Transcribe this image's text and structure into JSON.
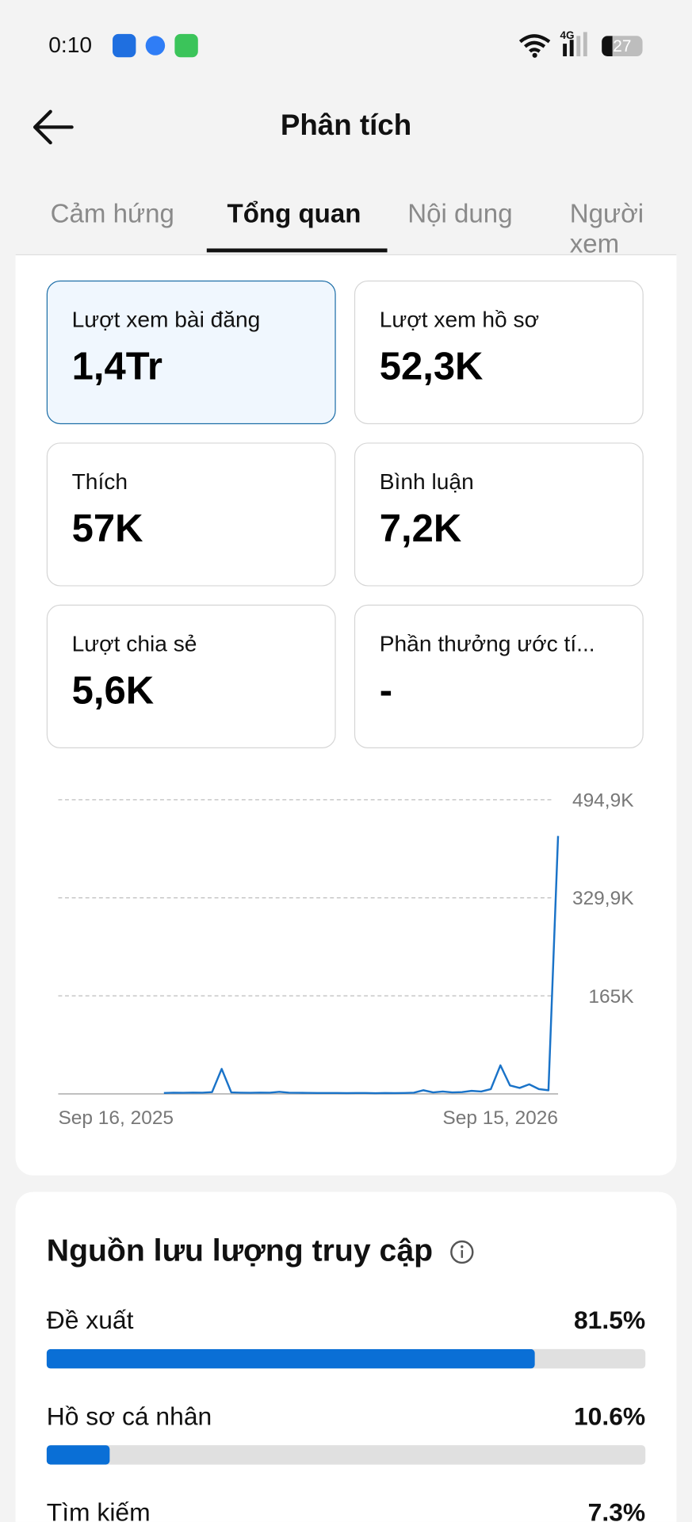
{
  "status_bar": {
    "time": "0:10",
    "network": "4G",
    "battery": "27"
  },
  "header": {
    "title": "Phân tích"
  },
  "tabs": [
    "Cảm hứng",
    "Tổng quan",
    "Nội dung",
    "Người xem"
  ],
  "cards": [
    {
      "label": "Lượt xem bài đăng",
      "value": "1,4Tr"
    },
    {
      "label": "Lượt xem hồ sơ",
      "value": "52,3K"
    },
    {
      "label": "Thích",
      "value": "57K"
    },
    {
      "label": "Bình luận",
      "value": "7,2K"
    },
    {
      "label": "Lượt chia sẻ",
      "value": "5,6K"
    },
    {
      "label": "Phần thưởng ước tí...",
      "value": "-"
    }
  ],
  "chart_data": {
    "type": "line",
    "color": "#1a73c8",
    "grid": true,
    "categories": [
      "Sep 16, 2025",
      null,
      null,
      null,
      null,
      null,
      null,
      null,
      null,
      null,
      null,
      null,
      null,
      null,
      null,
      null,
      null,
      null,
      null,
      null,
      null,
      null,
      null,
      null,
      null,
      null,
      null,
      null,
      null,
      null,
      null,
      null,
      null,
      null,
      null,
      null,
      null,
      null,
      null,
      null,
      null,
      null,
      null,
      null,
      null,
      null,
      null,
      null,
      null,
      null,
      null,
      null,
      "Sep 15, 2026"
    ],
    "values": [
      null,
      null,
      null,
      null,
      null,
      null,
      null,
      null,
      null,
      null,
      null,
      1500,
      2000,
      1800,
      2200,
      2000,
      3000,
      42000,
      2500,
      2000,
      1800,
      2200,
      2000,
      3500,
      2000,
      1800,
      1600,
      1500,
      1400,
      1500,
      1300,
      1400,
      1500,
      1200,
      1400,
      1300,
      1500,
      2000,
      6000,
      2500,
      4000,
      2500,
      3000,
      5000,
      4000,
      8000,
      48000,
      14000,
      10000,
      16000,
      8000,
      6000,
      434000
    ],
    "ylim": [
      0,
      494900
    ],
    "yticks": [
      {
        "value": 165000,
        "label": "165K"
      },
      {
        "value": 329900,
        "label": "329,9K"
      },
      {
        "value": 494900,
        "label": "494,9K"
      }
    ]
  },
  "traffic": {
    "title": "Nguồn lưu lượng truy cập",
    "xlim": [
      0,
      100
    ],
    "color": "#0a6fd6",
    "items": [
      {
        "label": "Đề xuất",
        "value": 81.5,
        "value_label": "81.5%"
      },
      {
        "label": "Hồ sơ cá nhân",
        "value": 10.6,
        "value_label": "10.6%"
      },
      {
        "label": "Tìm kiếm",
        "value": 7.3,
        "value_label": "7.3%"
      }
    ]
  }
}
